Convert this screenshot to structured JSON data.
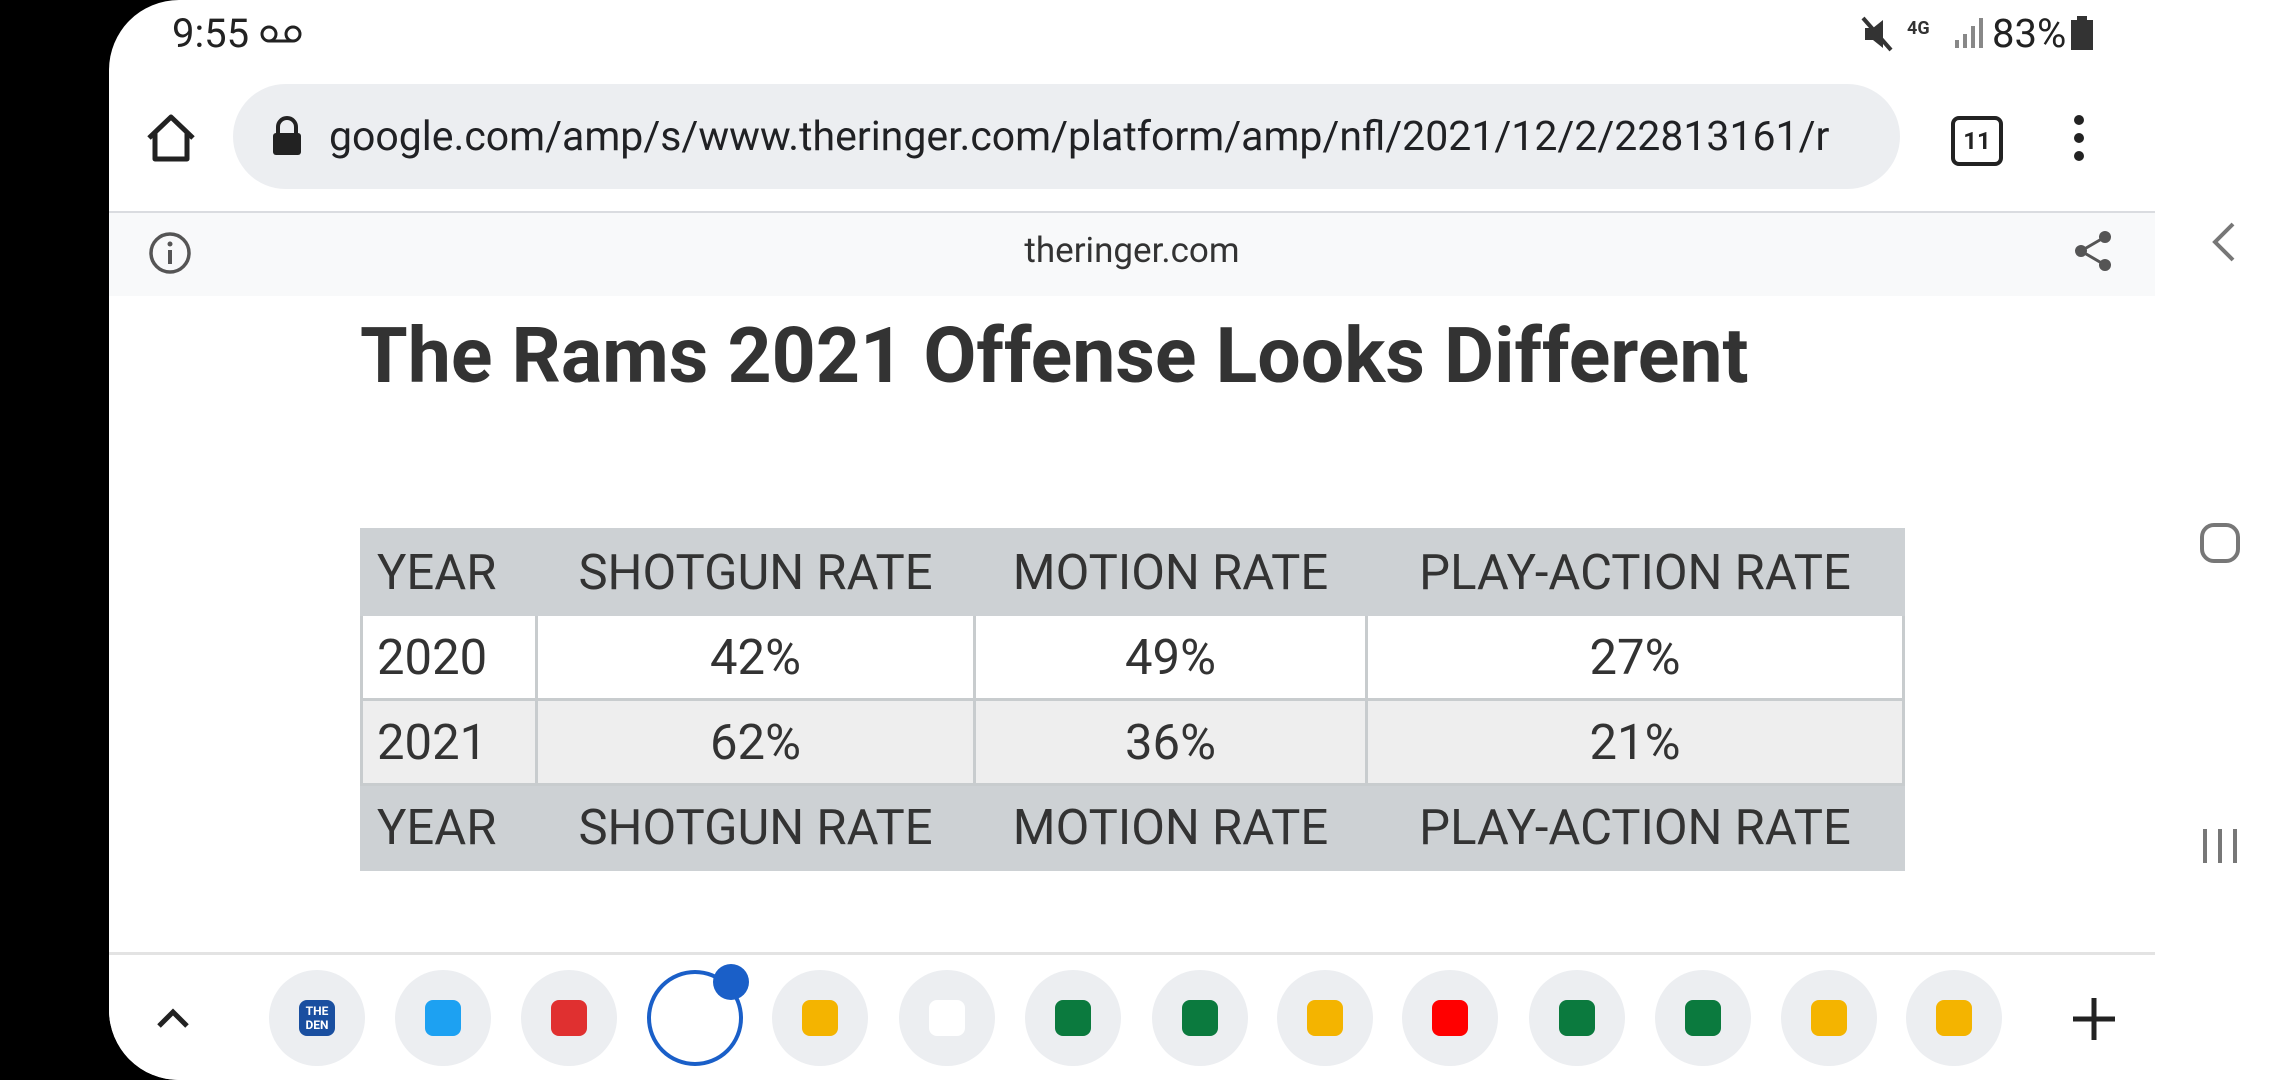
{
  "status_bar": {
    "time": "9:55",
    "battery": "83%"
  },
  "address_bar": {
    "url": "google.com/amp/s/www.theringer.com/platform/amp/nfl/2021/12/2/22813161/r",
    "tab_count": "11"
  },
  "site_bar": {
    "domain": "theringer.com"
  },
  "article": {
    "title": "The Rams 2021 Offense Looks Different"
  },
  "table": {
    "header": [
      "YEAR",
      "SHOTGUN RATE",
      "MOTION RATE",
      "PLAY-ACTION RATE"
    ],
    "rows": [
      [
        "2020",
        "42%",
        "49%",
        "27%"
      ],
      [
        "2021",
        "62%",
        "36%",
        "21%"
      ]
    ],
    "footer": [
      "YEAR",
      "SHOTGUN RATE",
      "MOTION RATE",
      "PLAY-ACTION RATE"
    ]
  },
  "bottom_bar": {
    "first_tab_label": "THE DEN"
  }
}
